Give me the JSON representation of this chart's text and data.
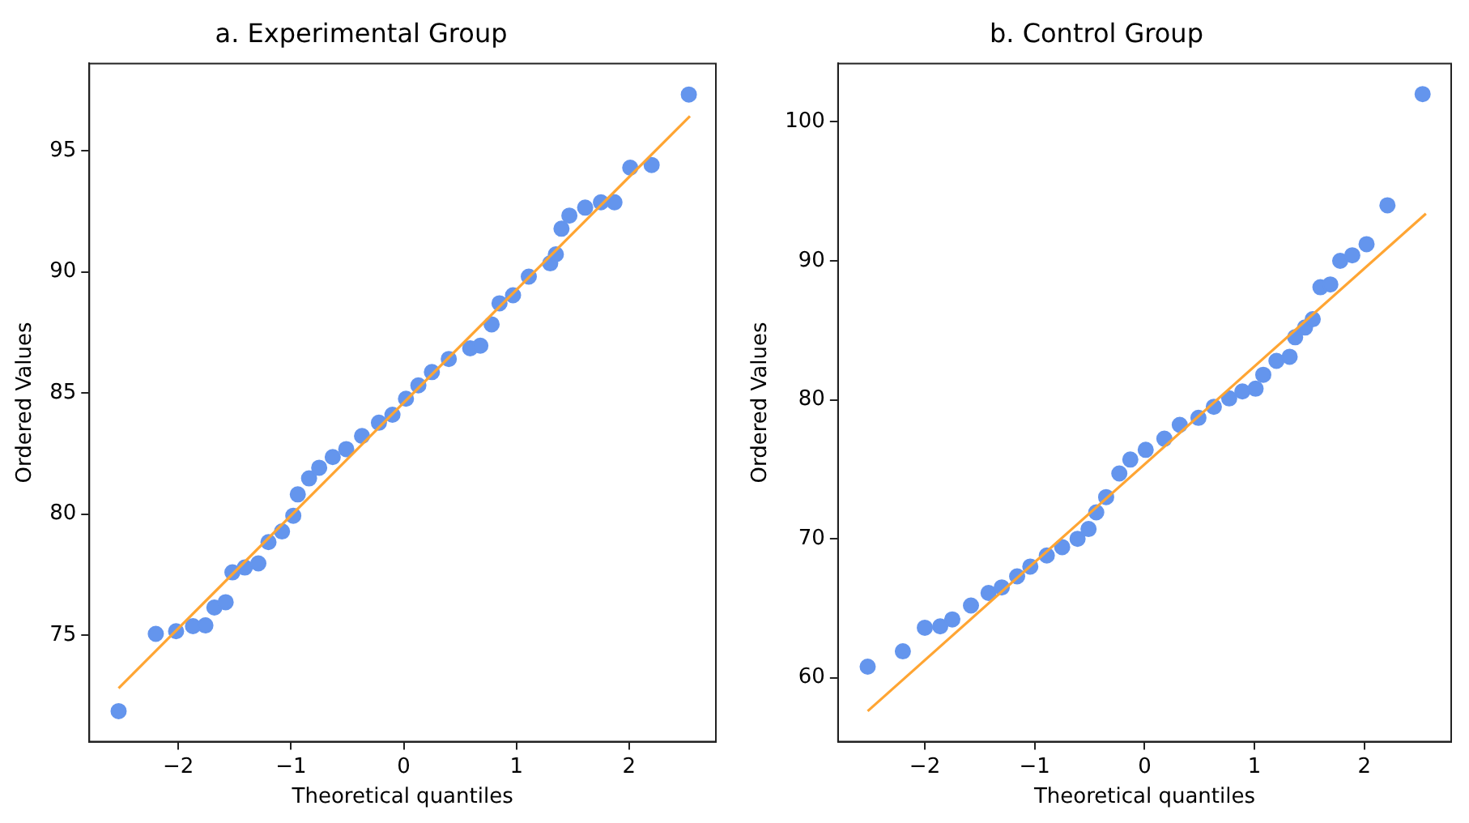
{
  "chart_data": [
    {
      "type": "scatter",
      "title": "a. Experimental Group",
      "xlabel": "Theoretical quantiles",
      "ylabel": "Ordered Values",
      "xlim": [
        -2.79,
        2.77
      ],
      "ylim": [
        70.6,
        98.6
      ],
      "xticks": [
        -2,
        -1,
        0,
        1,
        2
      ],
      "yticks": [
        75,
        80,
        85,
        90,
        95
      ],
      "grid": false,
      "legend": false,
      "series": [
        {
          "color": "#6495ed",
          "marker": "circle",
          "x": [
            -2.53,
            -2.2,
            -2.02,
            -1.87,
            -1.76,
            -1.68,
            -1.58,
            -1.52,
            -1.41,
            -1.29,
            -1.2,
            -1.08,
            -0.98,
            -0.94,
            -0.84,
            -0.75,
            -0.63,
            -0.51,
            -0.37,
            -0.22,
            -0.1,
            0.02,
            0.13,
            0.25,
            0.4,
            0.59,
            0.68,
            0.78,
            0.85,
            0.97,
            1.11,
            1.3,
            1.35,
            1.4,
            1.47,
            1.61,
            1.75,
            1.87,
            2.01,
            2.2,
            2.53
          ],
          "values": [
            71.86,
            75.05,
            75.16,
            75.37,
            75.4,
            76.14,
            76.36,
            77.59,
            77.79,
            77.96,
            78.84,
            79.28,
            79.93,
            80.81,
            81.47,
            81.91,
            82.35,
            82.68,
            83.22,
            83.77,
            84.1,
            84.76,
            85.31,
            85.86,
            86.4,
            86.84,
            86.95,
            87.83,
            88.7,
            89.03,
            89.8,
            90.35,
            90.72,
            91.78,
            92.32,
            92.65,
            92.87,
            92.87,
            94.3,
            94.41,
            97.32
          ]
        },
        {
          "type": "line",
          "marker": "none",
          "color": "#ffa533",
          "x": [
            -2.53,
            2.54
          ],
          "values": [
            72.81,
            96.43
          ]
        }
      ]
    },
    {
      "type": "scatter",
      "title": "b. Control Group",
      "xlabel": "Theoretical quantiles",
      "ylabel": "Ordered Values",
      "xlim": [
        -2.79,
        2.79
      ],
      "ylim": [
        55.4,
        104.2
      ],
      "xticks": [
        -2,
        -1,
        0,
        1,
        2
      ],
      "yticks": [
        60,
        70,
        80,
        90,
        100
      ],
      "grid": false,
      "legend": false,
      "series": [
        {
          "color": "#6495ed",
          "marker": "circle",
          "x": [
            -2.52,
            -2.2,
            -2.0,
            -1.86,
            -1.75,
            -1.58,
            -1.42,
            -1.3,
            -1.16,
            -1.04,
            -0.89,
            -0.75,
            -0.61,
            -0.51,
            -0.44,
            -0.35,
            -0.23,
            -0.13,
            0.01,
            0.18,
            0.32,
            0.49,
            0.63,
            0.77,
            0.89,
            1.01,
            1.08,
            1.2,
            1.32,
            1.37,
            1.46,
            1.53,
            1.6,
            1.69,
            1.78,
            1.89,
            2.02,
            2.21,
            2.53
          ],
          "values": [
            60.8,
            61.9,
            63.6,
            63.7,
            64.2,
            65.2,
            66.1,
            66.5,
            67.3,
            68.0,
            68.8,
            69.4,
            70.0,
            70.7,
            71.9,
            73.0,
            74.7,
            75.7,
            76.4,
            77.2,
            78.2,
            78.7,
            79.5,
            80.1,
            80.6,
            80.8,
            81.8,
            82.8,
            83.1,
            84.5,
            85.2,
            85.8,
            88.1,
            88.3,
            90.0,
            90.4,
            91.2,
            94.0,
            102.0
          ]
        },
        {
          "type": "line",
          "marker": "none",
          "color": "#ffa533",
          "x": [
            -2.52,
            2.56
          ],
          "values": [
            57.6,
            93.4
          ]
        }
      ]
    }
  ]
}
